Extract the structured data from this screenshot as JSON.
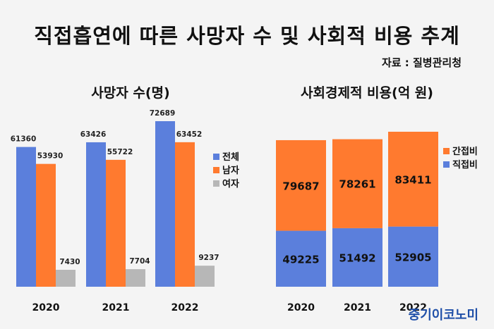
{
  "title": "직접흡연에 따른 사망자 수 및 사회적 비용 추계",
  "source": "자료 : 질병관리청",
  "watermark": "중기이코노미",
  "chart_data": [
    {
      "type": "bar",
      "title": "사망자 수(명)",
      "categories": [
        "2020",
        "2021",
        "2022"
      ],
      "series": [
        {
          "name": "전체",
          "values": [
            61360,
            63426,
            72689
          ],
          "color": "#5b7fdc"
        },
        {
          "name": "남자",
          "values": [
            53930,
            55722,
            63452
          ],
          "color": "#ff7a2f"
        },
        {
          "name": "여자",
          "values": [
            7430,
            7704,
            9237
          ],
          "color": "#b7b7b7"
        }
      ],
      "ylim": [
        0,
        80000
      ],
      "grid": false,
      "legend": "right"
    },
    {
      "type": "bar",
      "stacked": true,
      "title": "사회경제적 비용(억 원)",
      "categories": [
        "2020",
        "2021",
        "2022"
      ],
      "series": [
        {
          "name": "간접비",
          "values": [
            79687,
            78261,
            83411
          ],
          "color": "#ff7a2f"
        },
        {
          "name": "직접비",
          "values": [
            49225,
            51492,
            52905
          ],
          "color": "#5b7fdc"
        }
      ],
      "ylim": [
        0,
        145000
      ],
      "grid": false,
      "legend": "right"
    }
  ]
}
